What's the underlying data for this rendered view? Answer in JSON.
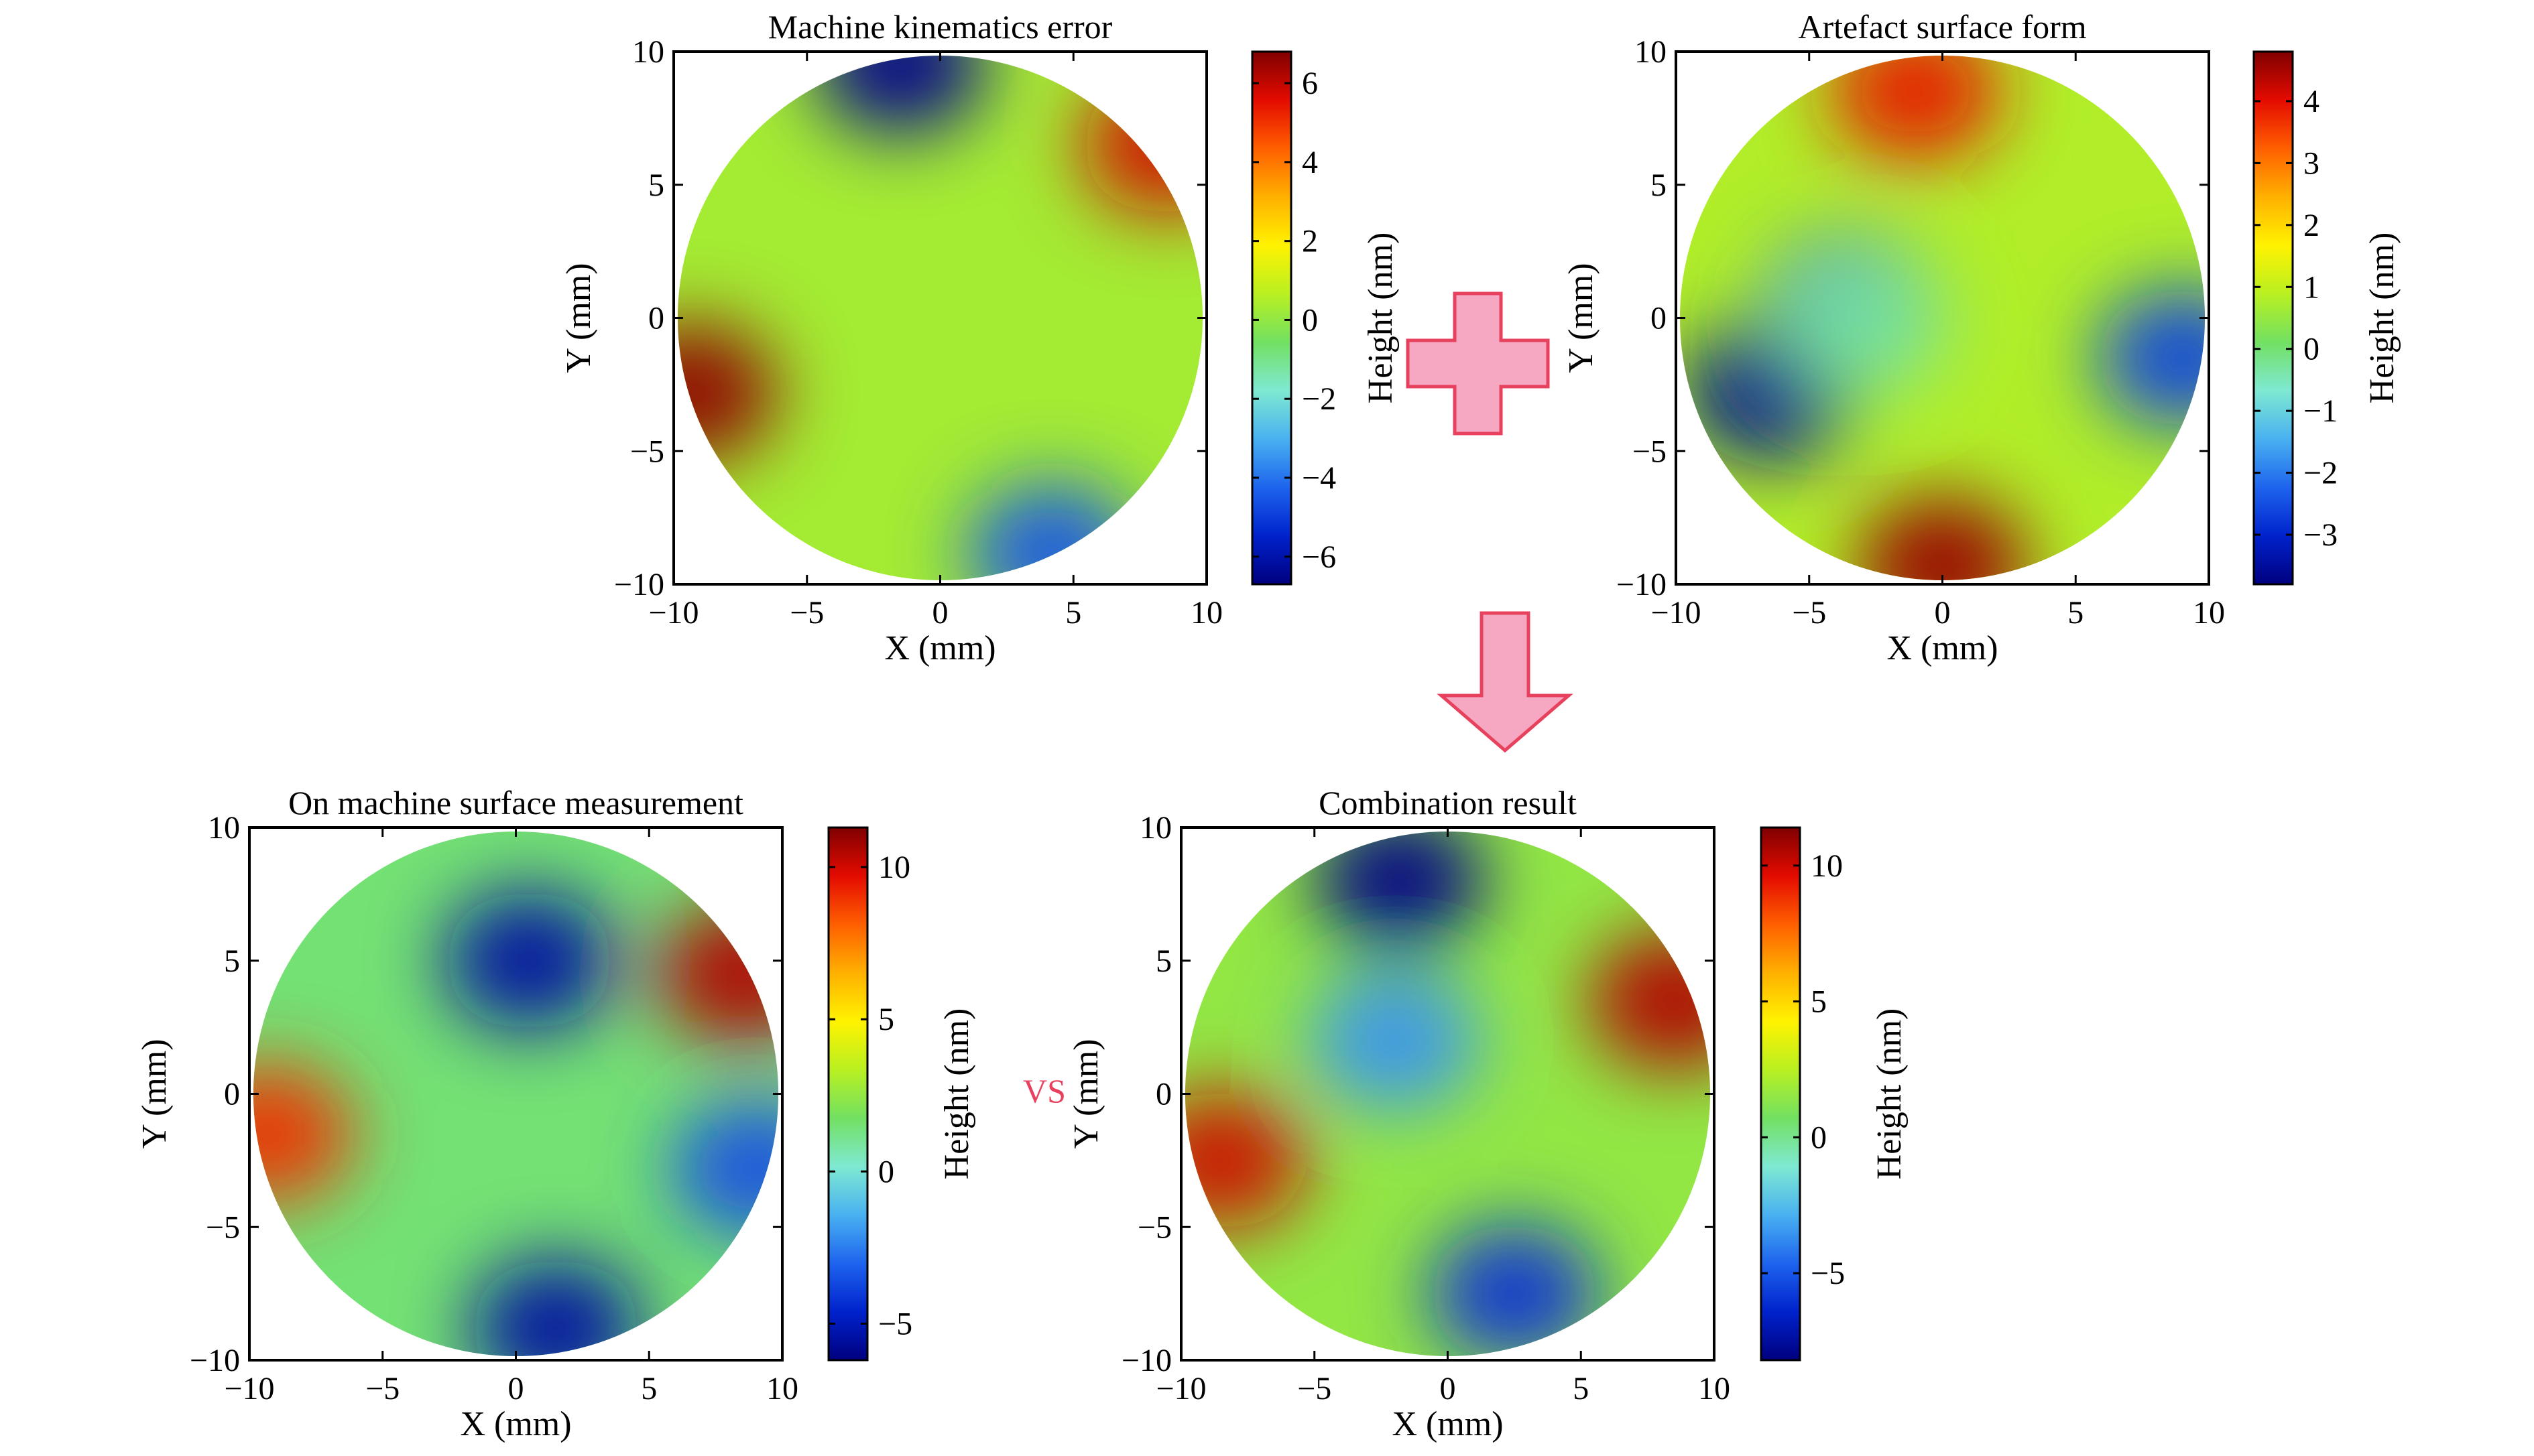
{
  "colors": {
    "colormap": [
      "#00007f",
      "#0022cc",
      "#1e64ee",
      "#49b1f0",
      "#7fe9d2",
      "#72e062",
      "#b9f021",
      "#fff200",
      "#ffb000",
      "#ff5f00",
      "#e40b00",
      "#7f0000"
    ],
    "arrow_fill": "#f6a8c2",
    "arrow_stroke": "#e8415e",
    "vs_text": "#e8415e",
    "plot_border": "#000000"
  },
  "flow": {
    "plus_icon": "plus-icon",
    "down_arrow_icon": "down-arrow-icon",
    "vs_label": "VS"
  },
  "chart_data": [
    {
      "type": "heatmap",
      "title": "Machine kinematics error",
      "xlabel": "X (mm)",
      "ylabel": "Y (mm)",
      "colorbar_label": "Height (nm)",
      "xlim": [
        -10,
        10
      ],
      "ylim": [
        -10,
        10
      ],
      "xticks": [
        -10,
        -5,
        0,
        5,
        10
      ],
      "yticks": [
        -10,
        -5,
        0,
        5,
        10
      ],
      "xtick_labels": [
        "−10",
        "−5",
        "0",
        "5",
        "10"
      ],
      "ytick_labels": [
        "−10",
        "−5",
        "0",
        "5",
        "10"
      ],
      "clim": [
        -6.7,
        6.8
      ],
      "colorbar_ticks": [
        -6,
        -4,
        -2,
        0,
        2,
        4,
        6
      ],
      "colorbar_tick_labels": [
        "−6",
        "−4",
        "−2",
        "0",
        "2",
        "4",
        "6"
      ],
      "domain": "circle of radius 10 mm",
      "features": [
        {
          "x": 0,
          "y": 0,
          "value": 0.3,
          "kind": "background"
        },
        {
          "x": -1.5,
          "y": 9.5,
          "value": -6.5,
          "kind": "min"
        },
        {
          "x": 8.5,
          "y": 6.5,
          "value": 5.8,
          "kind": "max"
        },
        {
          "x": -9.3,
          "y": -2.8,
          "value": 6.6,
          "kind": "max"
        },
        {
          "x": 4.2,
          "y": -8.8,
          "value": -4.5,
          "kind": "min"
        }
      ]
    },
    {
      "type": "heatmap",
      "title": "Artefact surface form",
      "xlabel": "X (mm)",
      "ylabel": "Y (mm)",
      "colorbar_label": "Height (nm)",
      "xlim": [
        -10,
        10
      ],
      "ylim": [
        -10,
        10
      ],
      "xticks": [
        -10,
        -5,
        0,
        5,
        10
      ],
      "yticks": [
        -10,
        -5,
        0,
        5,
        10
      ],
      "xtick_labels": [
        "−10",
        "−5",
        "0",
        "5",
        "10"
      ],
      "ytick_labels": [
        "−10",
        "−5",
        "0",
        "5",
        "10"
      ],
      "clim": [
        -3.8,
        4.8
      ],
      "colorbar_ticks": [
        -3,
        -2,
        -1,
        0,
        1,
        2,
        3,
        4
      ],
      "colorbar_tick_labels": [
        "−3",
        "−2",
        "−1",
        "0",
        "1",
        "2",
        "3",
        "4"
      ],
      "domain": "circle of radius 10 mm",
      "features": [
        {
          "x": 0,
          "y": 0,
          "value": 0.8,
          "kind": "background"
        },
        {
          "x": -3.5,
          "y": 0.5,
          "value": -2.6,
          "kind": "min"
        },
        {
          "x": -6.5,
          "y": -2.8,
          "value": -3.6,
          "kind": "min"
        },
        {
          "x": -3,
          "y": -0.2,
          "value": -0.3,
          "kind": "local max"
        },
        {
          "x": 0,
          "y": -9.3,
          "value": 4.6,
          "kind": "max"
        },
        {
          "x": -1,
          "y": 8.5,
          "value": 3.9,
          "kind": "max"
        },
        {
          "x": 9,
          "y": -1.5,
          "value": -2.6,
          "kind": "min"
        }
      ]
    },
    {
      "type": "heatmap",
      "title": "On machine surface measurement",
      "xlabel": "X (mm)",
      "ylabel": "Y (mm)",
      "colorbar_label": "Height (nm)",
      "xlim": [
        -10,
        10
      ],
      "ylim": [
        -10,
        10
      ],
      "xticks": [
        -10,
        -5,
        0,
        5,
        10
      ],
      "yticks": [
        -10,
        -5,
        0,
        5,
        10
      ],
      "xtick_labels": [
        "−10",
        "−5",
        "0",
        "5",
        "10"
      ],
      "ytick_labels": [
        "−10",
        "−5",
        "0",
        "5",
        "10"
      ],
      "clim": [
        -6.2,
        11.3
      ],
      "colorbar_ticks": [
        -5,
        0,
        5,
        10
      ],
      "colorbar_tick_labels": [
        "−5",
        "0",
        "5",
        "10"
      ],
      "domain": "circle of radius 10 mm",
      "features": [
        {
          "x": 0,
          "y": 0,
          "value": 1.5,
          "kind": "background"
        },
        {
          "x": 0.5,
          "y": 5,
          "value": -5.5,
          "kind": "min"
        },
        {
          "x": 1.5,
          "y": -8.8,
          "value": -5.5,
          "kind": "min"
        },
        {
          "x": 8.5,
          "y": 4.5,
          "value": 10.5,
          "kind": "max"
        },
        {
          "x": -9.3,
          "y": -1.5,
          "value": 9,
          "kind": "max"
        },
        {
          "x": 9,
          "y": -2.8,
          "value": -3.5,
          "kind": "min"
        }
      ]
    },
    {
      "type": "heatmap",
      "title": "Combination result",
      "xlabel": "X (mm)",
      "ylabel": "Y (mm)",
      "colorbar_label": "Height (nm)",
      "xlim": [
        -10,
        10
      ],
      "ylim": [
        -10,
        10
      ],
      "xticks": [
        -10,
        -5,
        0,
        5,
        10
      ],
      "yticks": [
        -10,
        -5,
        0,
        5,
        10
      ],
      "xtick_labels": [
        "−10",
        "−5",
        "0",
        "5",
        "10"
      ],
      "ytick_labels": [
        "−10",
        "−5",
        "0",
        "5",
        "10"
      ],
      "clim": [
        -8.2,
        11.4
      ],
      "colorbar_ticks": [
        -5,
        0,
        5,
        10
      ],
      "colorbar_tick_labels": [
        "−5",
        "0",
        "5",
        "10"
      ],
      "domain": "circle of radius 10 mm",
      "features": [
        {
          "x": 0,
          "y": 0,
          "value": 1.5,
          "kind": "background"
        },
        {
          "x": -1.8,
          "y": 8,
          "value": -8,
          "kind": "min"
        },
        {
          "x": -2,
          "y": 2,
          "value": -3.5,
          "kind": "min"
        },
        {
          "x": 2.5,
          "y": -7.5,
          "value": -6,
          "kind": "min"
        },
        {
          "x": 8.5,
          "y": 3.5,
          "value": 10.5,
          "kind": "max"
        },
        {
          "x": -8.5,
          "y": -2.5,
          "value": 10,
          "kind": "max"
        }
      ]
    }
  ]
}
